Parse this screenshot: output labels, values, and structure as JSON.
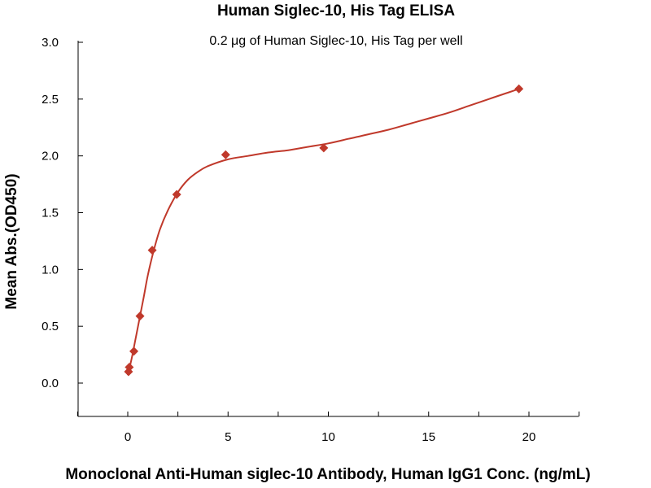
{
  "chart_data": {
    "type": "scatter",
    "title": "Human Siglec-10, His Tag ELISA",
    "subtitle": "0.2 μg of Human Siglec-10, His Tag per well",
    "xlabel": "Monoclonal Anti-Human siglec-10 Antibody, Human IgG1 Conc. (ng/mL)",
    "ylabel": "Mean Abs.(OD450)",
    "xlim": [
      -2.5,
      22.5
    ],
    "ylim": [
      -0.3,
      3.0
    ],
    "x_ticks": [
      0,
      5,
      10,
      15,
      20
    ],
    "x_tick_labels": [
      "0",
      "5",
      "10",
      "15",
      "20"
    ],
    "y_ticks": [
      0.0,
      0.5,
      1.0,
      1.5,
      2.0,
      2.5,
      3.0
    ],
    "y_tick_labels": [
      "0.0",
      "0.5",
      "1.0",
      "1.5",
      "2.0",
      "2.5",
      "3.0"
    ],
    "grid": false,
    "legend": "none",
    "marker": "diamond",
    "series_color": "#c0392b",
    "points": [
      {
        "x": 0.038,
        "y": 0.1
      },
      {
        "x": 0.076,
        "y": 0.14
      },
      {
        "x": 0.305,
        "y": 0.28
      },
      {
        "x": 0.61,
        "y": 0.59
      },
      {
        "x": 1.22,
        "y": 1.17
      },
      {
        "x": 2.44,
        "y": 1.66
      },
      {
        "x": 4.88,
        "y": 2.01
      },
      {
        "x": 9.77,
        "y": 2.07
      },
      {
        "x": 19.5,
        "y": 2.59
      }
    ],
    "fit_curve": [
      {
        "x": 0.0,
        "y": 0.07
      },
      {
        "x": 0.2,
        "y": 0.22
      },
      {
        "x": 0.4,
        "y": 0.4
      },
      {
        "x": 0.6,
        "y": 0.58
      },
      {
        "x": 0.8,
        "y": 0.76
      },
      {
        "x": 1.0,
        "y": 0.95
      },
      {
        "x": 1.3,
        "y": 1.17
      },
      {
        "x": 1.6,
        "y": 1.35
      },
      {
        "x": 2.0,
        "y": 1.52
      },
      {
        "x": 2.5,
        "y": 1.68
      },
      {
        "x": 3.0,
        "y": 1.79
      },
      {
        "x": 3.5,
        "y": 1.86
      },
      {
        "x": 4.0,
        "y": 1.91
      },
      {
        "x": 5.0,
        "y": 1.97
      },
      {
        "x": 6.0,
        "y": 2.0
      },
      {
        "x": 7.0,
        "y": 2.03
      },
      {
        "x": 8.0,
        "y": 2.05
      },
      {
        "x": 9.0,
        "y": 2.08
      },
      {
        "x": 10.0,
        "y": 2.11
      },
      {
        "x": 11.0,
        "y": 2.15
      },
      {
        "x": 12.0,
        "y": 2.19
      },
      {
        "x": 13.0,
        "y": 2.23
      },
      {
        "x": 14.0,
        "y": 2.28
      },
      {
        "x": 15.0,
        "y": 2.33
      },
      {
        "x": 16.0,
        "y": 2.38
      },
      {
        "x": 17.0,
        "y": 2.44
      },
      {
        "x": 18.0,
        "y": 2.5
      },
      {
        "x": 19.0,
        "y": 2.56
      },
      {
        "x": 19.5,
        "y": 2.59
      }
    ]
  }
}
